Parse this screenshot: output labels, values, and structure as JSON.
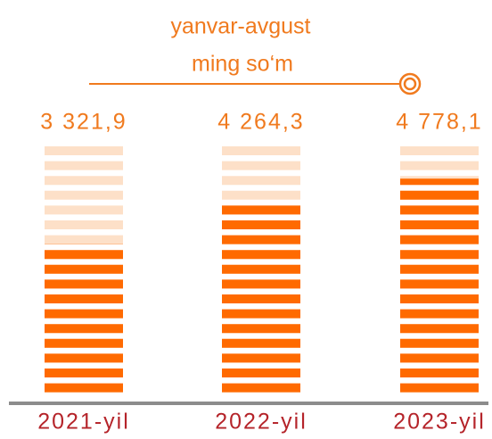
{
  "chart_data": {
    "type": "striped-bar",
    "title": "yanvar-avgust",
    "subtitle": "ming so‘m",
    "categories": [
      "2021-yil",
      "2022-yil",
      "2023-yil"
    ],
    "values": [
      3321.9,
      4264.3,
      4778.1
    ],
    "value_labels": [
      "3 321,9",
      "4 264,3",
      "4 778,1"
    ],
    "ylim": [
      0,
      5500
    ],
    "color": "#ff6a00",
    "background_color": "#fde0c8"
  }
}
